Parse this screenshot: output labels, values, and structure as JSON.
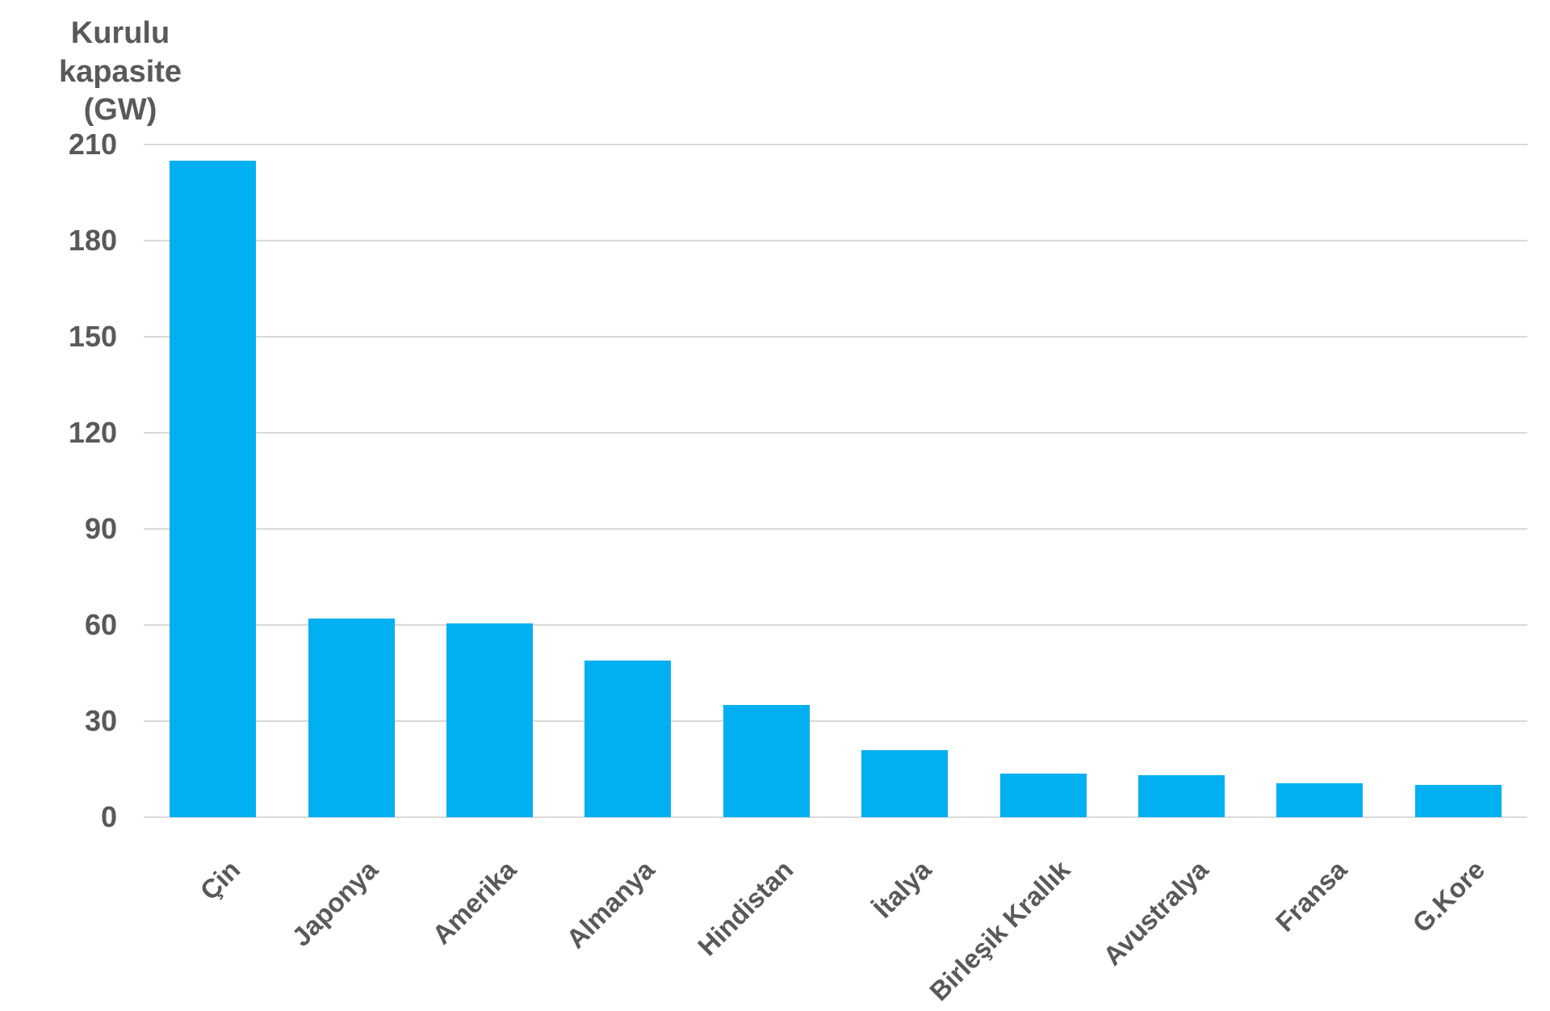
{
  "chart_data": {
    "type": "bar",
    "title": "Kurulu kapasite (GW)",
    "title_lines": [
      "Kurulu kapasite",
      "(GW)"
    ],
    "ylabel": "Kurulu kapasite (GW)",
    "xlabel": "",
    "categories": [
      "Çin",
      "Japonya",
      "Amerika",
      "Almanya",
      "Hindistan",
      "İtalya",
      "Birleşik Krallık",
      "Avustralya",
      "Fransa",
      "G.Kore"
    ],
    "values": [
      205,
      62,
      60.5,
      49,
      35,
      21,
      13.5,
      13.2,
      10.6,
      10.2
    ],
    "ylim": [
      0,
      210
    ],
    "yticks": [
      0,
      30,
      60,
      90,
      120,
      150,
      180,
      210
    ],
    "grid": true,
    "legend": false,
    "bar_color": "#00B0F0",
    "grid_color": "#D9D9D9",
    "text_color": "#595959",
    "background_color": "#FFFFFF"
  }
}
